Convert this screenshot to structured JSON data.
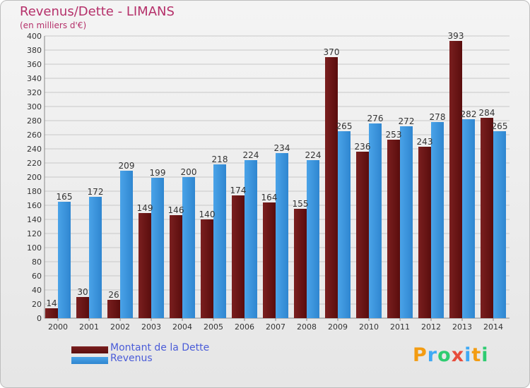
{
  "colors": {
    "debt": "#7a1f1f",
    "debt_dark": "#5a0d0d",
    "revenue": "#4aa3e8",
    "revenue_dark": "#2f86d0",
    "title": "#b5306a",
    "legend_text": "#4a5cd8",
    "grid": "#c8c8c8"
  },
  "header": {
    "title": "Revenus/Dette - LIMANS",
    "subtitle": "(en milliers d'€)"
  },
  "legend": {
    "debt_label": "Montant de la Dette",
    "revenue_label": "Revenus"
  },
  "logo": {
    "letters": [
      "P",
      "r",
      "o",
      "x",
      "i",
      "t",
      "i"
    ],
    "colors": [
      "#f39c12",
      "#3fa9f5",
      "#2ecc71",
      "#e74c3c",
      "#3fa9f5",
      "#f39c12",
      "#2ecc71"
    ]
  },
  "chart_data": {
    "type": "bar",
    "title": "Revenus/Dette - LIMANS",
    "subtitle": "(en milliers d'€)",
    "categories": [
      "2000",
      "2001",
      "2002",
      "2003",
      "2004",
      "2005",
      "2006",
      "2007",
      "2008",
      "2009",
      "2010",
      "2011",
      "2012",
      "2013",
      "2014"
    ],
    "series": [
      {
        "name": "Montant de la Dette",
        "values": [
          14,
          30,
          26,
          149,
          146,
          140,
          174,
          164,
          155,
          370,
          236,
          253,
          243,
          393,
          284
        ]
      },
      {
        "name": "Revenus",
        "values": [
          165,
          172,
          209,
          199,
          200,
          218,
          224,
          234,
          224,
          265,
          276,
          272,
          278,
          282,
          265
        ]
      }
    ],
    "ylim": [
      0,
      400
    ],
    "ytick_step": 20,
    "grid": true,
    "legend_position": "bottom-left"
  }
}
